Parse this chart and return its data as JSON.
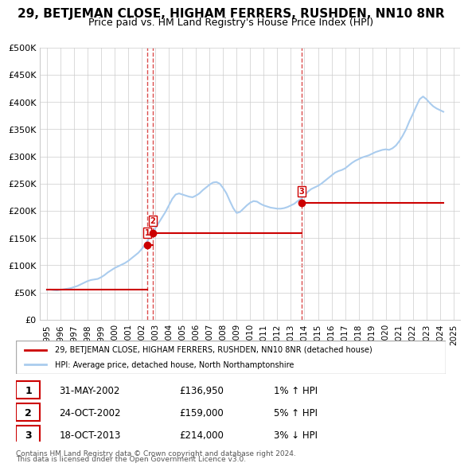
{
  "title": "29, BETJEMAN CLOSE, HIGHAM FERRERS, RUSHDEN, NN10 8NR",
  "subtitle": "Price paid vs. HM Land Registry's House Price Index (HPI)",
  "legend_property": "29, BETJEMAN CLOSE, HIGHAM FERRERS, RUSHDEN, NN10 8NR (detached house)",
  "legend_hpi": "HPI: Average price, detached house, North Northamptonshire",
  "transactions": [
    {
      "num": 1,
      "date": "31-MAY-2002",
      "price": 136950,
      "hpi_change": "1% ↑ HPI",
      "year": 2002.42
    },
    {
      "num": 2,
      "date": "24-OCT-2002",
      "price": 159000,
      "hpi_change": "5% ↑ HPI",
      "year": 2002.82
    },
    {
      "num": 3,
      "date": "18-OCT-2013",
      "price": 214000,
      "hpi_change": "3% ↓ HPI",
      "year": 2013.8
    }
  ],
  "footer_line1": "Contains HM Land Registry data © Crown copyright and database right 2024.",
  "footer_line2": "This data is licensed under the Open Government Licence v3.0.",
  "hpi_data": {
    "years": [
      1995.0,
      1995.25,
      1995.5,
      1995.75,
      1996.0,
      1996.25,
      1996.5,
      1996.75,
      1997.0,
      1997.25,
      1997.5,
      1997.75,
      1998.0,
      1998.25,
      1998.5,
      1998.75,
      1999.0,
      1999.25,
      1999.5,
      1999.75,
      2000.0,
      2000.25,
      2000.5,
      2000.75,
      2001.0,
      2001.25,
      2001.5,
      2001.75,
      2002.0,
      2002.25,
      2002.5,
      2002.75,
      2003.0,
      2003.25,
      2003.5,
      2003.75,
      2004.0,
      2004.25,
      2004.5,
      2004.75,
      2005.0,
      2005.25,
      2005.5,
      2005.75,
      2006.0,
      2006.25,
      2006.5,
      2006.75,
      2007.0,
      2007.25,
      2007.5,
      2007.75,
      2008.0,
      2008.25,
      2008.5,
      2008.75,
      2009.0,
      2009.25,
      2009.5,
      2009.75,
      2010.0,
      2010.25,
      2010.5,
      2010.75,
      2011.0,
      2011.25,
      2011.5,
      2011.75,
      2012.0,
      2012.25,
      2012.5,
      2012.75,
      2013.0,
      2013.25,
      2013.5,
      2013.75,
      2014.0,
      2014.25,
      2014.5,
      2014.75,
      2015.0,
      2015.25,
      2015.5,
      2015.75,
      2016.0,
      2016.25,
      2016.5,
      2016.75,
      2017.0,
      2017.25,
      2017.5,
      2017.75,
      2018.0,
      2018.25,
      2018.5,
      2018.75,
      2019.0,
      2019.25,
      2019.5,
      2019.75,
      2020.0,
      2020.25,
      2020.5,
      2020.75,
      2021.0,
      2021.25,
      2021.5,
      2021.75,
      2022.0,
      2022.25,
      2022.5,
      2022.75,
      2023.0,
      2023.25,
      2023.5,
      2023.75,
      2024.0,
      2024.25
    ],
    "values": [
      55000,
      55500,
      54500,
      54000,
      55000,
      56000,
      57000,
      58000,
      60000,
      62000,
      65000,
      68000,
      71000,
      73000,
      74000,
      75000,
      78000,
      82000,
      87000,
      91000,
      95000,
      98000,
      101000,
      104000,
      108000,
      113000,
      118000,
      123000,
      130000,
      138000,
      148000,
      158000,
      168000,
      178000,
      188000,
      198000,
      210000,
      222000,
      230000,
      232000,
      230000,
      228000,
      226000,
      225000,
      228000,
      232000,
      238000,
      243000,
      248000,
      252000,
      253000,
      250000,
      242000,
      232000,
      218000,
      205000,
      196000,
      198000,
      204000,
      210000,
      215000,
      218000,
      217000,
      213000,
      210000,
      208000,
      206000,
      205000,
      204000,
      204000,
      205000,
      207000,
      210000,
      213000,
      218000,
      222000,
      228000,
      235000,
      240000,
      243000,
      246000,
      250000,
      255000,
      260000,
      265000,
      270000,
      273000,
      275000,
      278000,
      283000,
      288000,
      292000,
      295000,
      298000,
      300000,
      302000,
      305000,
      308000,
      310000,
      312000,
      313000,
      312000,
      315000,
      320000,
      328000,
      338000,
      350000,
      365000,
      378000,
      392000,
      405000,
      410000,
      405000,
      398000,
      392000,
      388000,
      385000,
      382000
    ]
  },
  "property_line": {
    "segments": [
      {
        "x_start": 1995.0,
        "x_end": 2002.42,
        "y": 55000
      },
      {
        "x_start": 2002.42,
        "x_end": 2002.82,
        "y": 136950
      },
      {
        "x_start": 2002.82,
        "x_end": 2013.8,
        "y": 159000
      },
      {
        "x_start": 2013.8,
        "x_end": 2024.25,
        "y": 214000
      }
    ]
  },
  "ylim": [
    0,
    500000
  ],
  "yticks": [
    0,
    50000,
    100000,
    150000,
    200000,
    250000,
    300000,
    350000,
    400000,
    450000,
    500000
  ],
  "ytick_labels": [
    "£0",
    "£50K",
    "£100K",
    "£150K",
    "£200K",
    "£250K",
    "£300K",
    "£350K",
    "£400K",
    "£450K",
    "£500K"
  ],
  "xlim": [
    1994.5,
    2025.5
  ],
  "xticks": [
    1995,
    1996,
    1997,
    1998,
    1999,
    2000,
    2001,
    2002,
    2003,
    2004,
    2005,
    2006,
    2007,
    2008,
    2009,
    2010,
    2011,
    2012,
    2013,
    2014,
    2015,
    2016,
    2017,
    2018,
    2019,
    2020,
    2021,
    2022,
    2023,
    2024,
    2025
  ],
  "property_color": "#cc0000",
  "hpi_color": "#aaccee",
  "vline_color": "#cc0000",
  "marker_color": "#cc0000",
  "bg_color": "#ffffff",
  "grid_color": "#cccccc",
  "title_fontsize": 11,
  "subtitle_fontsize": 9,
  "table_number_box_color": "#cc0000"
}
